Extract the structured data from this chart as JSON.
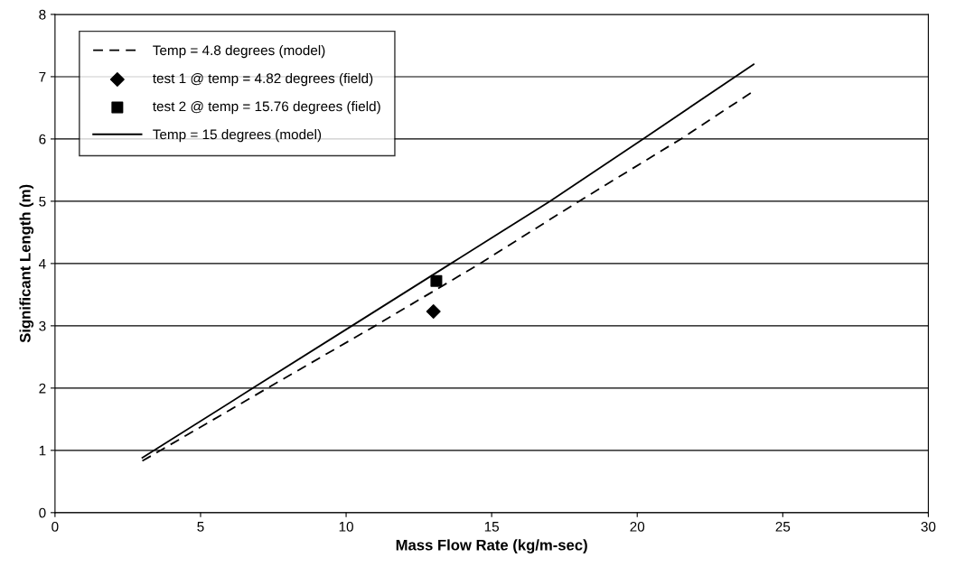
{
  "chart_data": {
    "type": "line",
    "xlabel": "Mass Flow Rate (kg/m-sec)",
    "ylabel": "Significant Length (m)",
    "xlim": [
      0,
      30
    ],
    "xticks": [
      0,
      5,
      10,
      15,
      20,
      25,
      30
    ],
    "ylim": [
      0,
      8
    ],
    "yticks": [
      0,
      1,
      2,
      3,
      4,
      5,
      6,
      7,
      8
    ],
    "grid": "y",
    "legend": "top left",
    "series": [
      {
        "name": "Temp = 4.8 degrees (model)",
        "line_style": "dashed",
        "marker": "none",
        "color": "#000000",
        "x": [
          3,
          7.3,
          11.0,
          14.6,
          18,
          21.5,
          24
        ],
        "values": [
          0.83,
          2,
          3,
          4,
          5,
          6,
          6.77
        ]
      },
      {
        "name": "test 1 @ temp = 4.82 degrees (field)",
        "type": "scatter",
        "marker": "diamond",
        "color": "#000000",
        "x": [
          13
        ],
        "values": [
          3.23
        ]
      },
      {
        "name": "test 2 @ temp = 15.76 degrees (field)",
        "type": "scatter",
        "marker": "square",
        "color": "#000000",
        "x": [
          13.1
        ],
        "values": [
          3.72
        ]
      },
      {
        "name": "Temp = 15 degrees (model)",
        "line_style": "solid",
        "marker": "none",
        "color": "#000000",
        "x": [
          3,
          6.8,
          10.2,
          13.6,
          17,
          20.2,
          24
        ],
        "values": [
          0.88,
          2,
          3,
          4,
          5,
          6,
          7.2
        ]
      }
    ]
  }
}
